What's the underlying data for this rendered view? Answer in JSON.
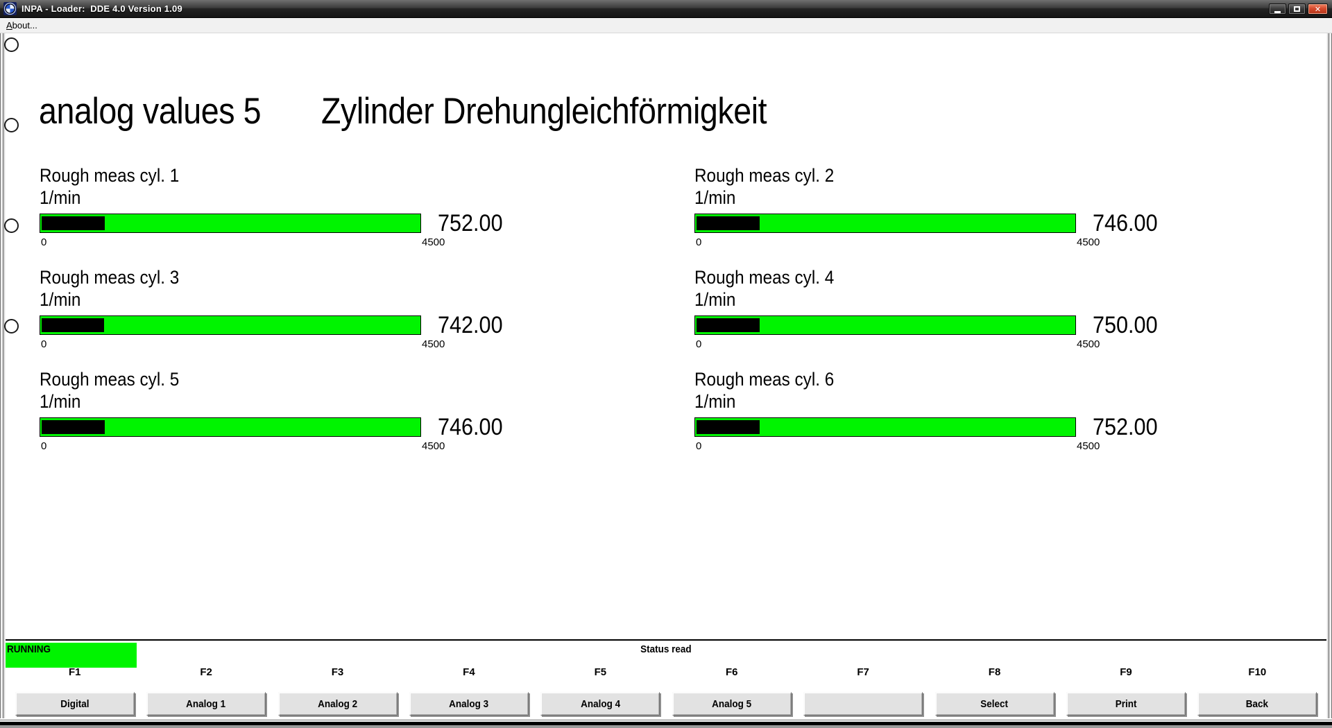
{
  "window": {
    "title": "INPA - Loader:  DDE 4.0 Version 1.09",
    "menu_about": "About...",
    "icons": {
      "app": "bmw-roundel",
      "minimize": "minimize",
      "maximize": "maximize",
      "close_glyph": "✕"
    }
  },
  "page": {
    "title_left": "analog values 5",
    "title_right": "Zylinder Drehungleichförmigkeit"
  },
  "gauges": [
    {
      "label": "Rough meas cyl. 1",
      "unit": "1/min",
      "value": 752.0,
      "display_value": "752.00",
      "min": 0,
      "max": 4500,
      "min_label": "0",
      "max_label": "4500"
    },
    {
      "label": "Rough meas cyl. 2",
      "unit": "1/min",
      "value": 746.0,
      "display_value": "746.00",
      "min": 0,
      "max": 4500,
      "min_label": "0",
      "max_label": "4500"
    },
    {
      "label": "Rough meas cyl. 3",
      "unit": "1/min",
      "value": 742.0,
      "display_value": "742.00",
      "min": 0,
      "max": 4500,
      "min_label": "0",
      "max_label": "4500"
    },
    {
      "label": "Rough meas cyl. 4",
      "unit": "1/min",
      "value": 750.0,
      "display_value": "750.00",
      "min": 0,
      "max": 4500,
      "min_label": "0",
      "max_label": "4500"
    },
    {
      "label": "Rough meas cyl. 5",
      "unit": "1/min",
      "value": 746.0,
      "display_value": "746.00",
      "min": 0,
      "max": 4500,
      "min_label": "0",
      "max_label": "4500"
    },
    {
      "label": "Rough meas cyl. 6",
      "unit": "1/min",
      "value": 752.0,
      "display_value": "752.00",
      "min": 0,
      "max": 4500,
      "min_label": "0",
      "max_label": "4500"
    }
  ],
  "chart_data": {
    "type": "bar",
    "categories": [
      "Rough meas cyl. 1",
      "Rough meas cyl. 2",
      "Rough meas cyl. 3",
      "Rough meas cyl. 4",
      "Rough meas cyl. 5",
      "Rough meas cyl. 6"
    ],
    "values": [
      752.0,
      746.0,
      742.0,
      750.0,
      746.0,
      752.0
    ],
    "unit": "1/min",
    "xlim": [
      0,
      4500
    ],
    "title": "analog values 5 Zylinder Drehungleichförmigkeit"
  },
  "status": {
    "running_label": "RUNNING",
    "status_text": "Status read"
  },
  "function_keys": [
    {
      "key": "F1",
      "label": "Digital"
    },
    {
      "key": "F2",
      "label": "Analog 1"
    },
    {
      "key": "F3",
      "label": "Analog 2"
    },
    {
      "key": "F4",
      "label": "Analog 3"
    },
    {
      "key": "F5",
      "label": "Analog 4"
    },
    {
      "key": "F6",
      "label": "Analog 5"
    },
    {
      "key": "F7",
      "label": ""
    },
    {
      "key": "F8",
      "label": "Select"
    },
    {
      "key": "F9",
      "label": "Print"
    },
    {
      "key": "F10",
      "label": "Back"
    }
  ],
  "colors": {
    "bar_green": "#00f400",
    "running_green": "#00f400",
    "close_red": "#d64a2d",
    "fill_black": "#000000"
  }
}
